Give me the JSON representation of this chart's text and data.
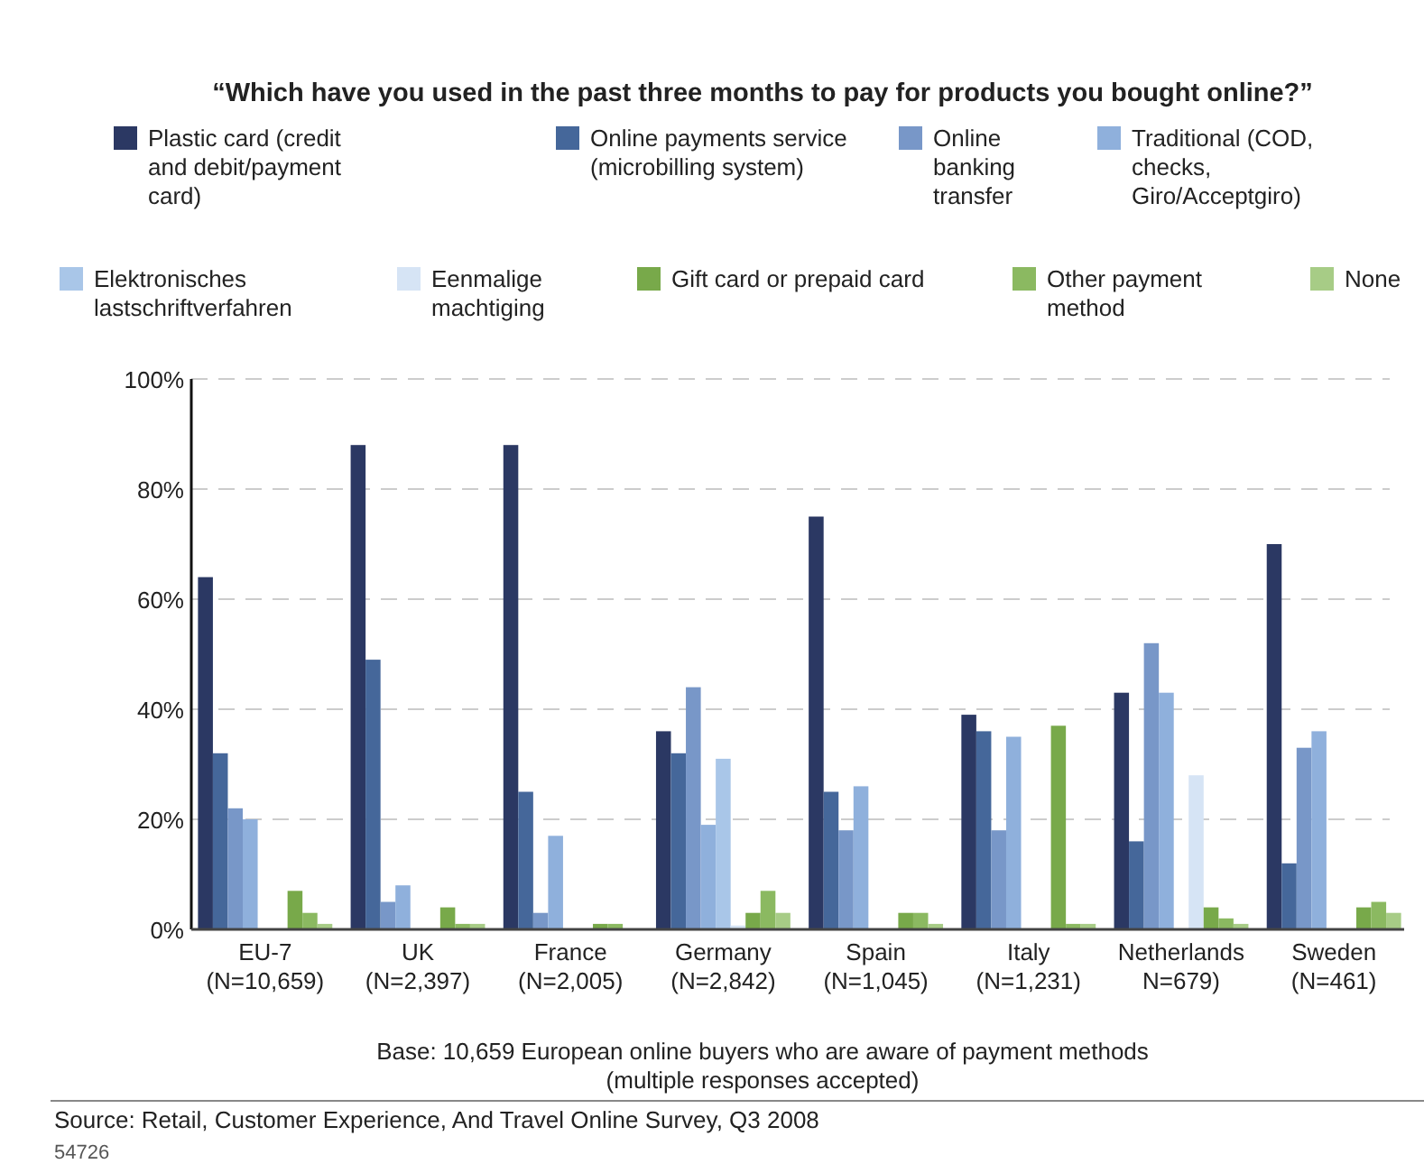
{
  "chart_data": {
    "type": "bar",
    "title": "“Which have you used in the past three months to pay for products you bought online?”",
    "categories": [
      "EU-7\n(N=10,659)",
      "UK\n(N=2,397)",
      "France\n(N=2,005)",
      "Germany\n(N=2,842)",
      "Spain\n(N=1,045)",
      "Italy\n(N=1,231)",
      "Netherlands\nN=679)",
      "Sweden\n(N=461)"
    ],
    "series": [
      {
        "name": "Plastic card (credit and debit/payment card)",
        "color": "#2b3863",
        "values": [
          64,
          88,
          88,
          36,
          75,
          39,
          43,
          70
        ]
      },
      {
        "name": "Online payments service (microbilling system)",
        "color": "#45679a",
        "values": [
          32,
          49,
          25,
          32,
          25,
          36,
          16,
          12
        ]
      },
      {
        "name": "Online banking transfer",
        "color": "#7897c8",
        "values": [
          22,
          5,
          3,
          44,
          18,
          18,
          52,
          33
        ]
      },
      {
        "name": "Traditional (COD, checks, Giro/Acceptgiro)",
        "color": "#8fb0dc",
        "values": [
          20,
          8,
          17,
          19,
          26,
          35,
          43,
          36
        ]
      },
      {
        "name": "Elektronisches lastschriftverfahren",
        "color": "#a9c6e8",
        "values": [
          null,
          null,
          null,
          31,
          null,
          null,
          null,
          null
        ]
      },
      {
        "name": "Eenmalige machtiging",
        "color": "#d6e4f5",
        "values": [
          null,
          null,
          null,
          0.7,
          null,
          null,
          28,
          null
        ]
      },
      {
        "name": "Gift card or prepaid card",
        "color": "#78a94a",
        "values": [
          7,
          4,
          1,
          3,
          3,
          37,
          4,
          4
        ]
      },
      {
        "name": "Other payment method",
        "color": "#8bb961",
        "values": [
          3,
          1,
          1,
          7,
          3,
          1,
          2,
          5
        ]
      },
      {
        "name": "None",
        "color": "#a7cc86",
        "values": [
          1,
          1,
          null,
          3,
          1,
          1,
          1,
          3
        ]
      }
    ],
    "ylim": [
      0,
      100
    ],
    "yticks": [
      {
        "value": 0,
        "label": "0%"
      },
      {
        "value": 20,
        "label": "20%"
      },
      {
        "value": 40,
        "label": "40%"
      },
      {
        "value": 60,
        "label": "60%"
      },
      {
        "value": 80,
        "label": "80%"
      },
      {
        "value": 100,
        "label": "100%"
      }
    ],
    "grid": "y",
    "legend": "top",
    "annotations": [
      "Base: 10,659 European online buyers who are aware of payment methods\n(multiple responses accepted)",
      "Source: Retail, Customer Experience, And Travel Online Survey, Q3 2008",
      "54726"
    ]
  }
}
